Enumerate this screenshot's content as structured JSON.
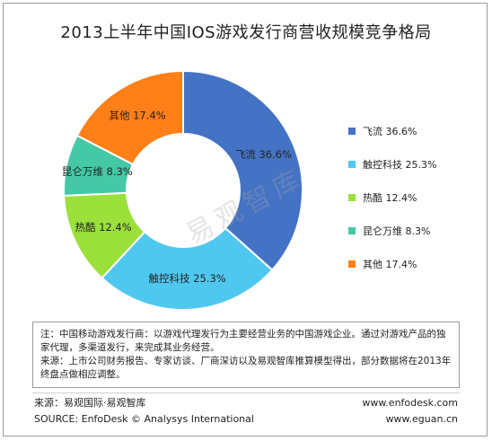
{
  "chart_data": {
    "type": "pie",
    "title": "2013上半年中国IOS游戏发行商营收规模竞争格局",
    "donut": true,
    "categories": [
      "飞流",
      "触控科技",
      "热酷",
      "昆仑万维",
      "其他"
    ],
    "values": [
      36.6,
      25.3,
      12.4,
      8.3,
      17.4
    ],
    "unit": "%",
    "slice_labels": [
      "飞流 36.6%",
      "触控科技 25.3%",
      "热酷 12.4%",
      "昆仑万维 8.3%",
      "其他 17.4%"
    ],
    "colors": [
      "#4472c4",
      "#4fc8f0",
      "#9be03b",
      "#45c8a6",
      "#ff7f19"
    ],
    "legend": {
      "placement": "right",
      "entries": [
        "飞流 36.6%",
        "触控科技 25.3%",
        "热酷 12.4%",
        "昆仑万维 8.3%",
        "其他 17.4%"
      ]
    }
  },
  "watermark": "易观智库",
  "notes": {
    "line1": "注：中国移动游戏发行商：以游戏代理发行为主要经营业务的中国游戏企业。通过对游戏产品的独家代理，多渠道发行，来完成其业务经营。",
    "line2": "来源：上市公司财务报告、专家访谈、厂商深访以及易观智库推算模型得出，部分数据将在2013年终盘点做相应调整。"
  },
  "footer": {
    "source_cn": "来源：易观国际·易观智库",
    "source_en": "SOURCE: EnfoDesk © Analysys International",
    "url1": "www.enfodesk.com",
    "url2": "www.eguan.cn"
  }
}
